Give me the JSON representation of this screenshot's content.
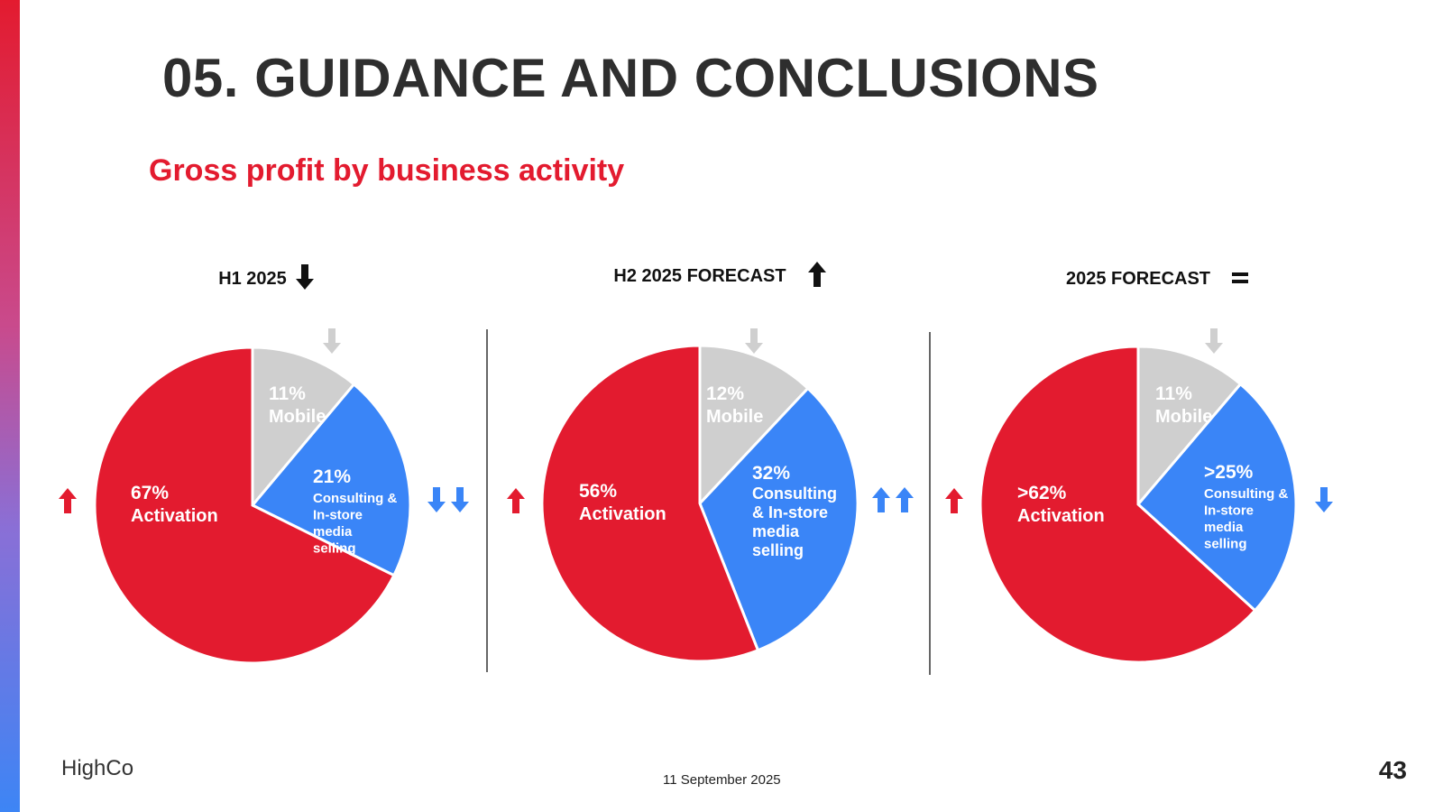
{
  "slide": {
    "title": "05. GUIDANCE AND CONCLUSIONS",
    "subtitle": "Gross profit by business activity",
    "logo": "HighCo",
    "date": "11 September 2025",
    "page_number": "43"
  },
  "colors": {
    "activation": "#e31b2f",
    "mobile": "#cfcfcf",
    "consulting": "#3a85f7",
    "accent": "#e31b2f"
  },
  "chart_data": [
    {
      "type": "pie",
      "title": "H1 2025",
      "title_trend": "down",
      "slices": [
        {
          "category": "mobile",
          "value": 11,
          "pct_label": "11%",
          "lines": [
            "Mobile"
          ],
          "trend": [
            "down"
          ]
        },
        {
          "category": "consulting",
          "value": 21,
          "pct_label": "21%",
          "lines": [
            "Consulting &",
            "In-store",
            "media",
            "selling"
          ],
          "trend": [
            "down",
            "down"
          ]
        },
        {
          "category": "activation",
          "value": 67,
          "pct_label": "67%",
          "lines": [
            "Activation"
          ],
          "trend": [
            "up"
          ]
        }
      ]
    },
    {
      "type": "pie",
      "title": "H2 2025 FORECAST",
      "title_trend": "up",
      "slices": [
        {
          "category": "mobile",
          "value": 12,
          "pct_label": "12%",
          "lines": [
            "Mobile"
          ],
          "trend": [
            "down"
          ]
        },
        {
          "category": "consulting",
          "value": 32,
          "pct_label": "32%",
          "lines": [
            "Consulting",
            "& In-store",
            "media",
            "selling"
          ],
          "trend": [
            "up",
            "up"
          ]
        },
        {
          "category": "activation",
          "value": 56,
          "pct_label": "56%",
          "lines": [
            "Activation"
          ],
          "trend": [
            "up"
          ]
        }
      ]
    },
    {
      "type": "pie",
      "title": "2025 FORECAST",
      "title_trend": "equal",
      "slices": [
        {
          "category": "mobile",
          "value": 11,
          "pct_label": "11%",
          "lines": [
            "Mobile"
          ],
          "trend": [
            "down"
          ]
        },
        {
          "category": "consulting",
          "value": 25,
          "pct_label": ">25%",
          "lines": [
            "Consulting &",
            "In-store",
            "media",
            "selling"
          ],
          "trend": [
            "down"
          ]
        },
        {
          "category": "activation",
          "value": 62,
          "pct_label": ">62%",
          "lines": [
            "Activation"
          ],
          "trend": [
            "up"
          ]
        }
      ]
    }
  ]
}
